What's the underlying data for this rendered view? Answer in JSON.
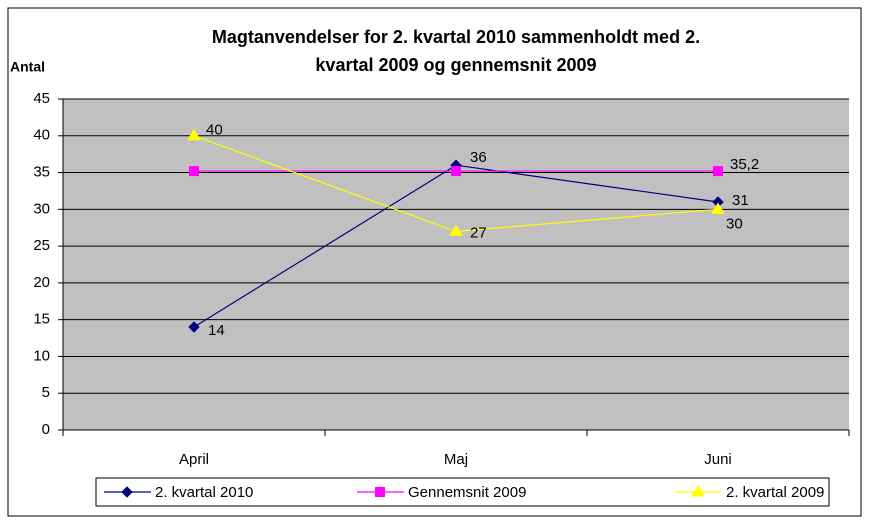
{
  "chart_data": {
    "type": "line",
    "title": [
      "Magtanvendelser for 2. kvartal 2010 sammenholdt med 2.",
      "kvartal 2009 og gennemsnit 2009"
    ],
    "y_label": "Antal",
    "categories": [
      "April",
      "Maj",
      "Juni"
    ],
    "series": [
      {
        "name": "2. kvartal 2010",
        "color": "#000080",
        "marker": "diamond",
        "values": [
          14,
          36,
          31
        ]
      },
      {
        "name": "Gennemsnit 2009",
        "color": "#ff00ff",
        "marker": "square",
        "values": [
          35.2,
          35.2,
          35.2
        ],
        "value_labels": [
          null,
          null,
          "35,2"
        ]
      },
      {
        "name": "2. kvartal 2009",
        "color": "#ffff00",
        "marker": "triangle",
        "values": [
          40,
          27,
          30
        ]
      }
    ],
    "ylim": [
      0,
      45
    ],
    "yticks": [
      0,
      5,
      10,
      15,
      20,
      25,
      30,
      35,
      40,
      45
    ],
    "grid": true,
    "legend": "bottom"
  }
}
